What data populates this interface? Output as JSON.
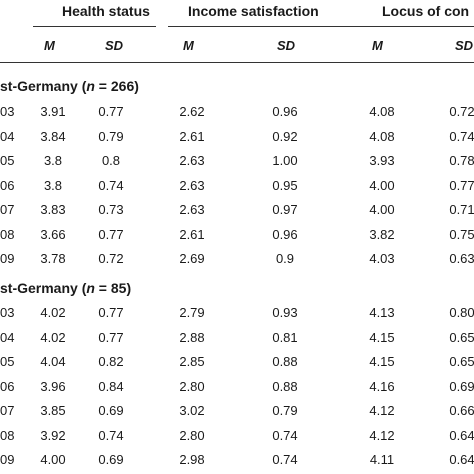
{
  "header": {
    "groups": [
      "Health status",
      "Income satisfaction",
      "Locus of con"
    ],
    "subcols": [
      "M",
      "SD",
      "M",
      "SD",
      "M",
      "SD"
    ]
  },
  "sections": [
    {
      "label_prefix": "st-Germany (",
      "label_n": "n",
      "label_rest": " = 266)",
      "rows": [
        {
          "year": "03",
          "v": [
            "3.91",
            "0.77",
            "2.62",
            "0.96",
            "4.08",
            "0.72"
          ]
        },
        {
          "year": "04",
          "v": [
            "3.84",
            "0.79",
            "2.61",
            "0.92",
            "4.08",
            "0.74"
          ]
        },
        {
          "year": "05",
          "v": [
            "3.8",
            "0.8",
            "2.63",
            "1.00",
            "3.93",
            "0.78"
          ]
        },
        {
          "year": "06",
          "v": [
            "3.8",
            "0.74",
            "2.63",
            "0.95",
            "4.00",
            "0.77"
          ]
        },
        {
          "year": "07",
          "v": [
            "3.83",
            "0.73",
            "2.63",
            "0.97",
            "4.00",
            "0.71"
          ]
        },
        {
          "year": "08",
          "v": [
            "3.66",
            "0.77",
            "2.61",
            "0.96",
            "3.82",
            "0.75"
          ]
        },
        {
          "year": "09",
          "v": [
            "3.78",
            "0.72",
            "2.69",
            "0.9",
            "4.03",
            "0.63"
          ]
        }
      ]
    },
    {
      "label_prefix": "st-Germany (",
      "label_n": "n",
      "label_rest": " = 85)",
      "rows": [
        {
          "year": "03",
          "v": [
            "4.02",
            "0.77",
            "2.79",
            "0.93",
            "4.13",
            "0.80"
          ]
        },
        {
          "year": "04",
          "v": [
            "4.02",
            "0.77",
            "2.88",
            "0.81",
            "4.15",
            "0.65"
          ]
        },
        {
          "year": "05",
          "v": [
            "4.04",
            "0.82",
            "2.85",
            "0.88",
            "4.15",
            "0.65"
          ]
        },
        {
          "year": "06",
          "v": [
            "3.96",
            "0.84",
            "2.80",
            "0.88",
            "4.16",
            "0.69"
          ]
        },
        {
          "year": "07",
          "v": [
            "3.85",
            "0.69",
            "3.02",
            "0.79",
            "4.12",
            "0.66"
          ]
        },
        {
          "year": "08",
          "v": [
            "3.92",
            "0.74",
            "2.80",
            "0.74",
            "4.12",
            "0.64"
          ]
        },
        {
          "year": "09",
          "v": [
            "4.00",
            "0.69",
            "2.98",
            "0.74",
            "4.11",
            "0.64"
          ]
        }
      ]
    }
  ]
}
